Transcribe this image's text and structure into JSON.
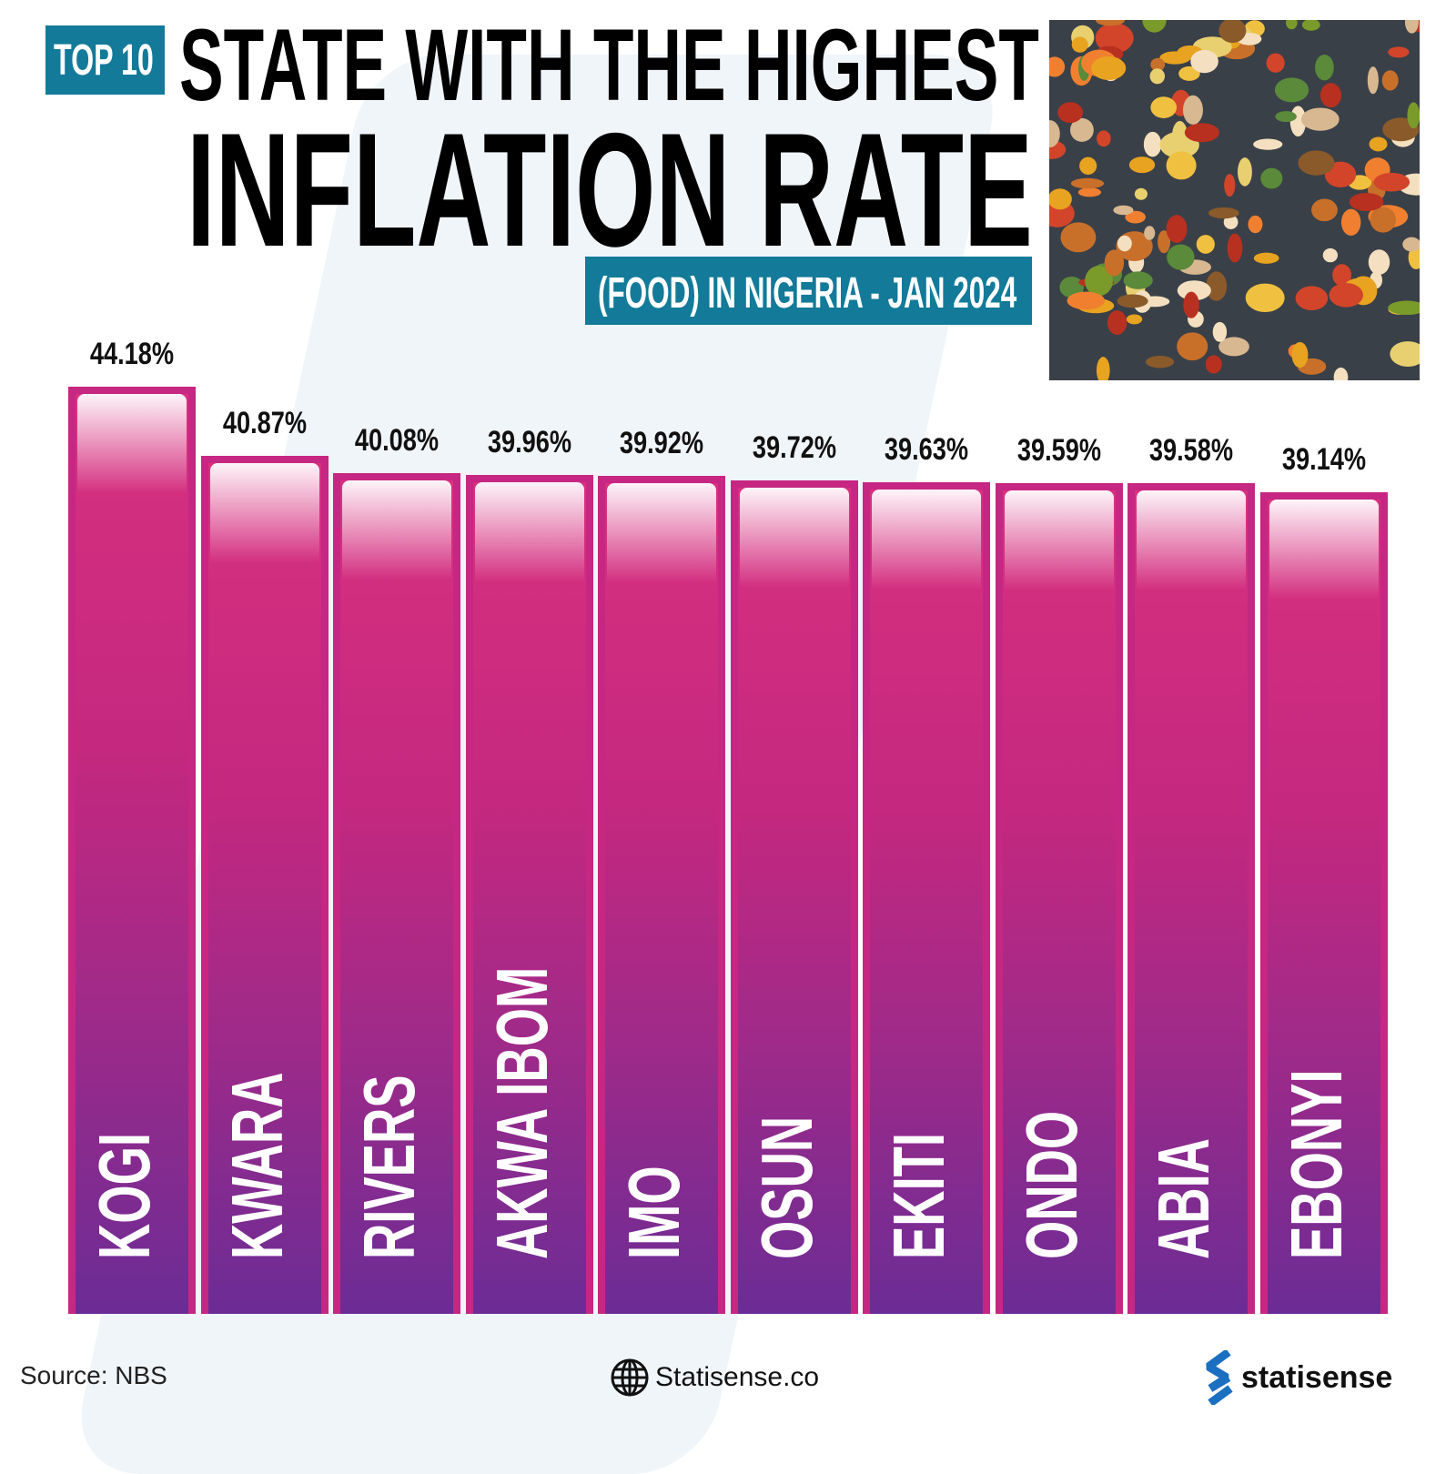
{
  "header": {
    "badge": "TOP 10",
    "title_line1": "STATE WITH THE HIGHEST",
    "title_line2": "INFLATION RATE",
    "subtitle": "(FOOD) IN NIGERIA - JAN 2024"
  },
  "chart_data": {
    "type": "bar",
    "categories": [
      "KOGI",
      "KWARA",
      "RIVERS",
      "AKWA IBOM",
      "IMO",
      "OSUN",
      "EKITI",
      "ONDO",
      "ABIA",
      "EBONYI"
    ],
    "values": [
      44.18,
      40.87,
      40.08,
      39.96,
      39.92,
      39.72,
      39.63,
      39.59,
      39.58,
      39.14
    ],
    "value_labels": [
      "44.18%",
      "40.87%",
      "40.08%",
      "39.96%",
      "39.92%",
      "39.72%",
      "39.63%",
      "39.59%",
      "39.58%",
      "39.14%"
    ],
    "ylim": [
      0,
      44.18
    ],
    "grid": false,
    "colors": {
      "bar_top": "#d9307f",
      "bar_bottom": "#6b2c95",
      "accent": "#137a99"
    }
  },
  "footer": {
    "source": "Source: NBS",
    "website": "Statisense.co",
    "website_icon": "globe-icon",
    "brand": "statisense",
    "brand_color": "#1a6fc0"
  }
}
